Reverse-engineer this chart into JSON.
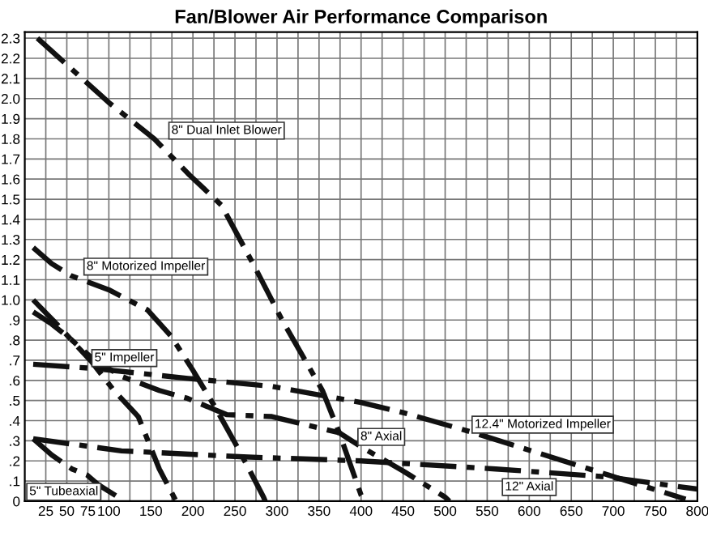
{
  "chart_data": {
    "type": "line",
    "title": "Fan/Blower Air Performance Comparison",
    "line_style": "dashdot",
    "marker": "none",
    "grid": true,
    "legend": false,
    "xlim": [
      0,
      800
    ],
    "ylim": [
      0,
      2.33
    ],
    "xticks": [
      25,
      50,
      75,
      100,
      {
        "value": 125,
        "label": null
      },
      150,
      {
        "value": 175,
        "label": null
      },
      200,
      {
        "value": 225,
        "label": null
      },
      250,
      {
        "value": 275,
        "label": null
      },
      300,
      {
        "value": 325,
        "label": null
      },
      350,
      {
        "value": 375,
        "label": null
      },
      400,
      {
        "value": 425,
        "label": null
      },
      450,
      {
        "value": 475,
        "label": null
      },
      500,
      {
        "value": 525,
        "label": null
      },
      550,
      {
        "value": 575,
        "label": null
      },
      600,
      {
        "value": 625,
        "label": null
      },
      650,
      {
        "value": 675,
        "label": null
      },
      700,
      {
        "value": 725,
        "label": null
      },
      750,
      {
        "value": 775,
        "label": null
      },
      800
    ],
    "yticks": [
      0,
      {
        "value": 0.1,
        "label": ".1"
      },
      {
        "value": 0.2,
        "label": ".2"
      },
      {
        "value": 0.3,
        "label": ".3"
      },
      {
        "value": 0.4,
        "label": ".4"
      },
      {
        "value": 0.5,
        "label": ".5"
      },
      {
        "value": 0.6,
        "label": ".6"
      },
      {
        "value": 0.7,
        "label": ".7"
      },
      {
        "value": 0.8,
        "label": ".8"
      },
      {
        "value": 0.9,
        "label": ".9"
      },
      {
        "value": 1.0,
        "label": "1.0"
      },
      1.1,
      1.2,
      1.3,
      1.4,
      1.5,
      1.6,
      1.7,
      1.8,
      1.9,
      {
        "value": 2.0,
        "label": "2.0"
      },
      2.1,
      2.2,
      2.3
    ],
    "series": [
      {
        "name": "8\" Dual Inlet Blower",
        "color": "#111111",
        "x": [
          15,
          100,
          154,
          196,
          234,
          274,
          306,
          354,
          374,
          400,
          405
        ],
        "values": [
          2.3,
          1.98,
          1.8,
          1.62,
          1.47,
          1.16,
          0.9,
          0.55,
          0.34,
          0.03,
          0
        ]
      },
      {
        "name": "8\" Motorized Impeller",
        "color": "#111111",
        "x": [
          10,
          32,
          55,
          100,
          146,
          174,
          200,
          226,
          254,
          284,
          286
        ],
        "values": [
          1.26,
          1.18,
          1.12,
          1.05,
          0.95,
          0.82,
          0.65,
          0.47,
          0.26,
          0.02,
          0
        ]
      },
      {
        "name": "5\" Impeller",
        "color": "#111111",
        "x": [
          10,
          38,
          60,
          80,
          106,
          135,
          160,
          180
        ],
        "values": [
          1.0,
          0.88,
          0.78,
          0.69,
          0.55,
          0.42,
          0.16,
          0
        ]
      },
      {
        "name": "8\" Axial",
        "color": "#111111",
        "x": [
          10,
          32,
          56,
          80,
          115,
          160,
          194,
          240,
          294,
          334,
          374,
          400,
          450,
          500,
          505
        ],
        "values": [
          0.94,
          0.88,
          0.8,
          0.71,
          0.62,
          0.55,
          0.51,
          0.43,
          0.42,
          0.38,
          0.34,
          0.27,
          0.15,
          0.02,
          0
        ]
      },
      {
        "name": "12.4\" Motorized Impeller",
        "color": "#111111",
        "x": [
          10,
          80,
          194,
          294,
          360,
          400,
          450,
          534,
          694,
          786
        ],
        "values": [
          0.68,
          0.66,
          0.61,
          0.57,
          0.52,
          0.49,
          0.44,
          0.34,
          0.13,
          0.01
        ]
      },
      {
        "name": "12\" Axial",
        "color": "#111111",
        "x": [
          10,
          115,
          260,
          400,
          560,
          694,
          800
        ],
        "values": [
          0.31,
          0.25,
          0.22,
          0.2,
          0.16,
          0.12,
          0.06
        ]
      },
      {
        "name": "5\" Tubeaxial",
        "color": "#111111",
        "x": [
          10,
          32,
          56,
          74,
          88,
          115
        ],
        "values": [
          0.31,
          0.23,
          0.16,
          0.13,
          0.08,
          0.01
        ]
      }
    ]
  }
}
